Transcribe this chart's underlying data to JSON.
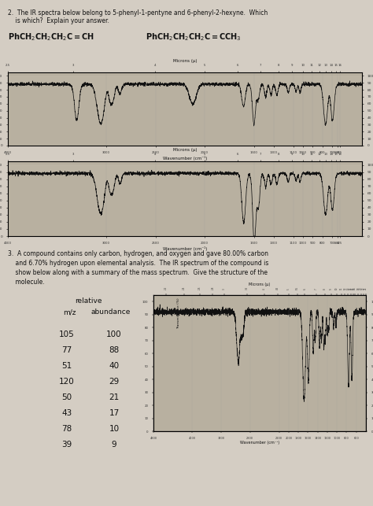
{
  "bg_color": "#d4cdc3",
  "question2_line1": "2.  The IR spectra below belong to 5-phenyl-1-pentyne and 6-phenyl-2-hexyne.  Which",
  "question2_line2": "    is which?  Explain your answer.",
  "question3_text1": "3.  A compound contains only carbon, hydrogen, and oxygen and gave 80.00% carbon",
  "question3_text2": "    and 6.70% hydrogen upon elemental analysis.  The IR spectrum of the compound is",
  "question3_text3": "    show below along with a summary of the mass spectrum.  Give the structure of the",
  "question3_text4": "    molecule.",
  "mz_label": "m/z",
  "rel_label": "relative",
  "abund_label": "abundance",
  "mz_values": [
    105,
    77,
    51,
    120,
    50,
    43,
    78,
    39
  ],
  "abundances": [
    100,
    88,
    40,
    29,
    21,
    17,
    10,
    9
  ],
  "ir1_xlabel": "Wavenumber (cm⁻¹)",
  "ir2_xlabel": "Wavenumber (cm⁻¹)",
  "ir3_xlabel": "Wavenumber (cm⁻¹)",
  "ir1_microns_label": "Microns (μ)",
  "ir2_microns_label": "Microns (μ)",
  "ir3_microns_label": "Microns (μ)",
  "ir_bg": "#b8b0a0",
  "ir_line_color": "#111111",
  "spectrum_text_color": "#333333"
}
